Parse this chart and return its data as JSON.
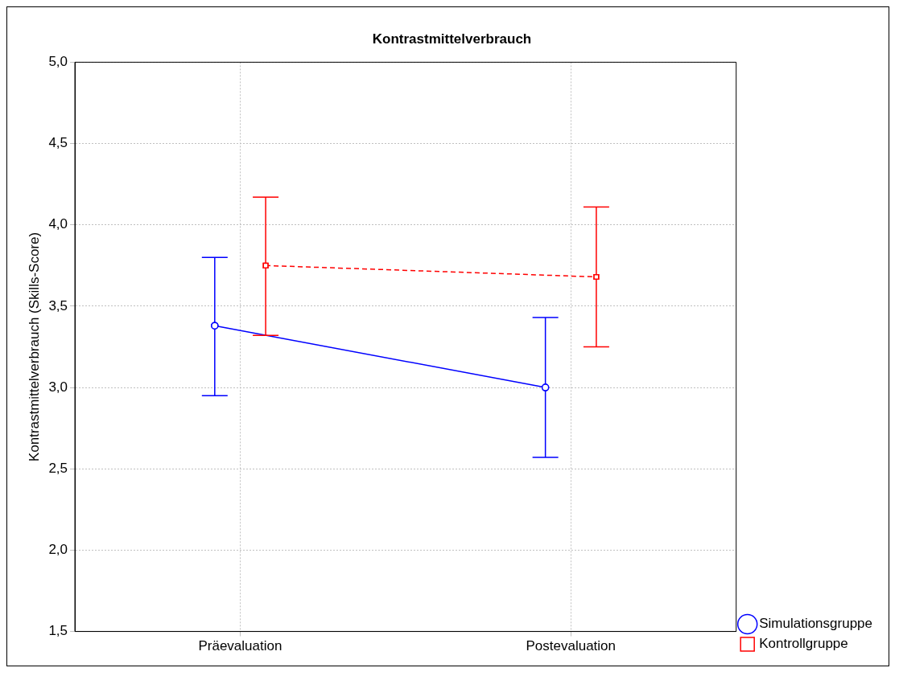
{
  "chart_data": {
    "type": "line",
    "title": "Kontrastmittelverbrauch",
    "ylabel": "Kontrastmittelverbrauch (Skills-Score)",
    "categories": [
      "Präevaluation",
      "Postevaluation"
    ],
    "series": [
      {
        "name": "Simulationsgruppe",
        "color": "#0000ff",
        "values": [
          3.38,
          3.0
        ],
        "errors": [
          [
            2.95,
            3.8
          ],
          [
            2.57,
            3.43
          ]
        ],
        "marker": "circle",
        "line_style": "solid"
      },
      {
        "name": "Kontrollgruppe",
        "color": "#ff0000",
        "values": [
          3.75,
          3.68
        ],
        "errors": [
          [
            3.32,
            4.17
          ],
          [
            3.25,
            4.11
          ]
        ],
        "marker": "square",
        "line_style": "dashed"
      }
    ],
    "ylim": [
      1.5,
      5.0
    ],
    "yticks": [
      {
        "value": 1.5,
        "label": "1,5"
      },
      {
        "value": 2.0,
        "label": "2,0"
      },
      {
        "value": 2.5,
        "label": "2,5"
      },
      {
        "value": 3.0,
        "label": "3,0"
      },
      {
        "value": 3.5,
        "label": "3,5"
      },
      {
        "value": 4.0,
        "label": "4,0"
      },
      {
        "value": 4.5,
        "label": "4,5"
      },
      {
        "value": 5.0,
        "label": "5,0"
      }
    ],
    "grid": true,
    "legend": "bottom right"
  }
}
